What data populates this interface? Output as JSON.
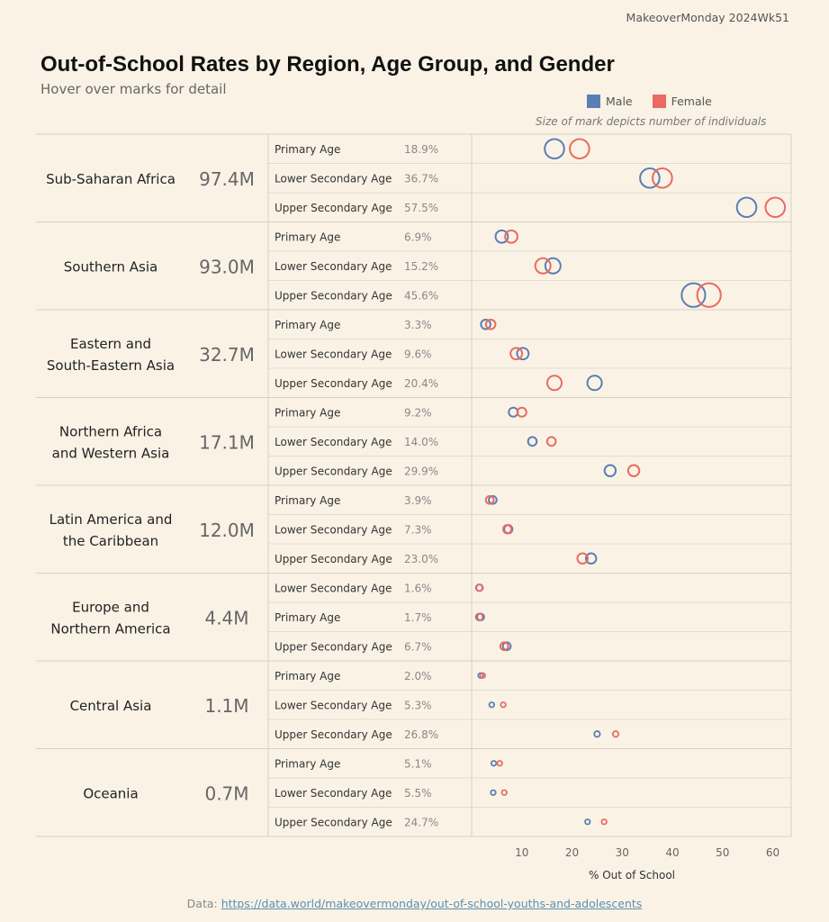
{
  "header": {
    "tag": "MakeoverMonday 2024Wk51",
    "title": "Out-of-School Rates by Region, Age Group, and Gender",
    "subtitle": "Hover over marks for detail",
    "size_note": "Size of mark depicts number of individuals"
  },
  "legend": [
    {
      "label": "Male",
      "color": "#5b7fb5"
    },
    {
      "label": "Female",
      "color": "#e96b63"
    }
  ],
  "footer": {
    "prefix": "Data: ",
    "link": "https://data.world/makeovermonday/out-of-school-youths-and-adolescents"
  },
  "chart_data": {
    "type": "scatter",
    "xlabel": "% Out of School",
    "xlim": [
      0,
      64
    ],
    "xticks": [
      10,
      20,
      30,
      40,
      50,
      60
    ],
    "grid": "horizontal row separators",
    "regions": [
      {
        "name": [
          "Sub-Saharan Africa"
        ],
        "total": "97.4M",
        "rows": [
          {
            "age": "Primary Age",
            "rate": "18.9%",
            "male": 16.5,
            "female": 21.5,
            "size": 4
          },
          {
            "age": "Lower Secondary Age",
            "rate": "36.7%",
            "male": 35.5,
            "female": 38.0,
            "size": 4
          },
          {
            "age": "Upper Secondary Age",
            "rate": "57.5%",
            "male": 54.8,
            "female": 60.5,
            "size": 4
          }
        ]
      },
      {
        "name": [
          "Southern Asia"
        ],
        "total": "93.0M",
        "rows": [
          {
            "age": "Primary Age",
            "rate": "6.9%",
            "male": 6.0,
            "female": 7.9,
            "size": 2.3
          },
          {
            "age": "Lower Secondary Age",
            "rate": "15.2%",
            "male": 16.2,
            "female": 14.2,
            "size": 3
          },
          {
            "age": "Upper Secondary Age",
            "rate": "45.6%",
            "male": 44.2,
            "female": 47.3,
            "size": 5
          }
        ]
      },
      {
        "name": [
          "Eastern and",
          "South-Eastern Asia"
        ],
        "total": "32.7M",
        "rows": [
          {
            "age": "Primary Age",
            "rate": "3.3%",
            "male": 2.8,
            "female": 3.8,
            "size": 1.6
          },
          {
            "age": "Lower Secondary Age",
            "rate": "9.6%",
            "male": 10.2,
            "female": 8.9,
            "size": 2.1
          },
          {
            "age": "Upper Secondary Age",
            "rate": "20.4%",
            "male": 24.5,
            "female": 16.5,
            "size": 2.8
          }
        ]
      },
      {
        "name": [
          "Northern Africa",
          "and Western Asia"
        ],
        "total": "17.1M",
        "rows": [
          {
            "age": "Primary Age",
            "rate": "9.2%",
            "male": 8.3,
            "female": 10.0,
            "size": 1.5
          },
          {
            "age": "Lower Secondary Age",
            "rate": "14.0%",
            "male": 12.1,
            "female": 15.9,
            "size": 1.4
          },
          {
            "age": "Upper Secondary Age",
            "rate": "29.9%",
            "male": 27.6,
            "female": 32.3,
            "size": 2.0
          }
        ]
      },
      {
        "name": [
          "Latin America and",
          "the Caribbean"
        ],
        "total": "12.0M",
        "rows": [
          {
            "age": "Primary Age",
            "rate": "3.9%",
            "male": 4.2,
            "female": 3.6,
            "size": 1.2
          },
          {
            "age": "Lower Secondary Age",
            "rate": "7.3%",
            "male": 7.3,
            "female": 7.1,
            "size": 1.3
          },
          {
            "age": "Upper Secondary Age",
            "rate": "23.0%",
            "male": 23.8,
            "female": 22.1,
            "size": 1.8
          }
        ]
      },
      {
        "name": [
          "Europe and",
          "Northern America"
        ],
        "total": "4.4M",
        "rows": [
          {
            "age": "Lower Secondary Age",
            "rate": "1.6%",
            "male": 1.5,
            "female": 1.6,
            "size": 0.9
          },
          {
            "age": "Primary Age",
            "rate": "1.7%",
            "male": 1.8,
            "female": 1.5,
            "size": 1.0
          },
          {
            "age": "Upper Secondary Age",
            "rate": "6.7%",
            "male": 7.0,
            "female": 6.5,
            "size": 1.2
          }
        ]
      },
      {
        "name": [
          "Central Asia"
        ],
        "total": "1.1M",
        "rows": [
          {
            "age": "Primary Age",
            "rate": "2.0%",
            "male": 1.8,
            "female": 2.2,
            "size": 0.5
          },
          {
            "age": "Lower Secondary Age",
            "rate": "5.3%",
            "male": 4.0,
            "female": 6.3,
            "size": 0.5
          },
          {
            "age": "Upper Secondary Age",
            "rate": "26.8%",
            "male": 25.0,
            "female": 28.7,
            "size": 0.7
          }
        ]
      },
      {
        "name": [
          "Oceania"
        ],
        "total": "0.7M",
        "rows": [
          {
            "age": "Primary Age",
            "rate": "5.1%",
            "male": 4.4,
            "female": 5.6,
            "size": 0.5
          },
          {
            "age": "Lower Secondary Age",
            "rate": "5.5%",
            "male": 4.3,
            "female": 6.5,
            "size": 0.5
          },
          {
            "age": "Upper Secondary Age",
            "rate": "24.7%",
            "male": 23.1,
            "female": 26.4,
            "size": 0.5
          }
        ]
      }
    ]
  }
}
